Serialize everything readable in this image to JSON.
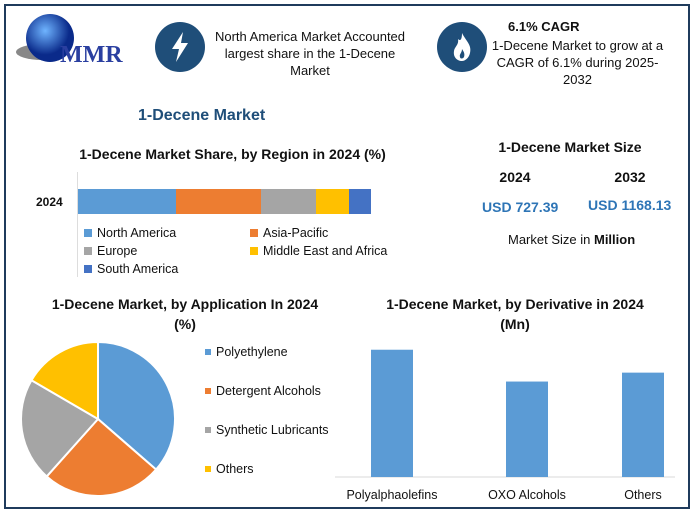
{
  "logo": {
    "text": "MMR"
  },
  "header": {
    "card1": {
      "icon": "lightning-icon",
      "text": "North America Market Accounted largest share in the 1-Decene Market"
    },
    "card2": {
      "icon": "flame-icon",
      "title": "6.1% CAGR",
      "text": "1-Decene Market to grow at a CAGR of 6.1% during 2025-2032"
    }
  },
  "market_title": "1-Decene Market",
  "size_panel": {
    "title": "1-Decene Market Size",
    "year1": "2024",
    "year2": "2032",
    "value1": "USD 727.39",
    "value2": "USD 1168.13",
    "note_prefix": "Market Size in ",
    "note_unit": "Million"
  },
  "colors": {
    "blue": "#5b9bd5",
    "orange": "#ed7d31",
    "gray": "#a5a5a5",
    "yellow": "#ffc000",
    "darkblue": "#4472c4",
    "navy": "#1f4e79"
  },
  "chart_data": [
    {
      "type": "bar",
      "orientation": "horizontal-stacked",
      "title": "1-Decene Market Share, by Region in 2024 (%)",
      "categories": [
        "2024"
      ],
      "series": [
        {
          "name": "North America",
          "values": [
            33.5
          ]
        },
        {
          "name": "Asia-Pacific",
          "values": [
            29.0
          ]
        },
        {
          "name": "Europe",
          "values": [
            18.8
          ]
        },
        {
          "name": "Middle East and Africa",
          "values": [
            11.2
          ]
        },
        {
          "name": "South America",
          "values": [
            7.5
          ]
        }
      ],
      "legend": "bottom"
    },
    {
      "type": "pie",
      "title": "1-Decene Market, by Application In 2024 (%)",
      "labels": [
        "Polyethylene",
        "Detergent Alcohols",
        "Synthetic Lubricants",
        "Others"
      ],
      "values": [
        36.4,
        25.2,
        21.8,
        16.6
      ],
      "legend": "right"
    },
    {
      "type": "bar",
      "title": "1-Decene Market, by Derivative in 2024 (Mn)",
      "categories": [
        "Polyalphaolefins",
        "OXO Alcohols",
        "Others"
      ],
      "values": [
        100,
        75,
        82
      ],
      "ylim": [
        0,
        110
      ]
    }
  ]
}
